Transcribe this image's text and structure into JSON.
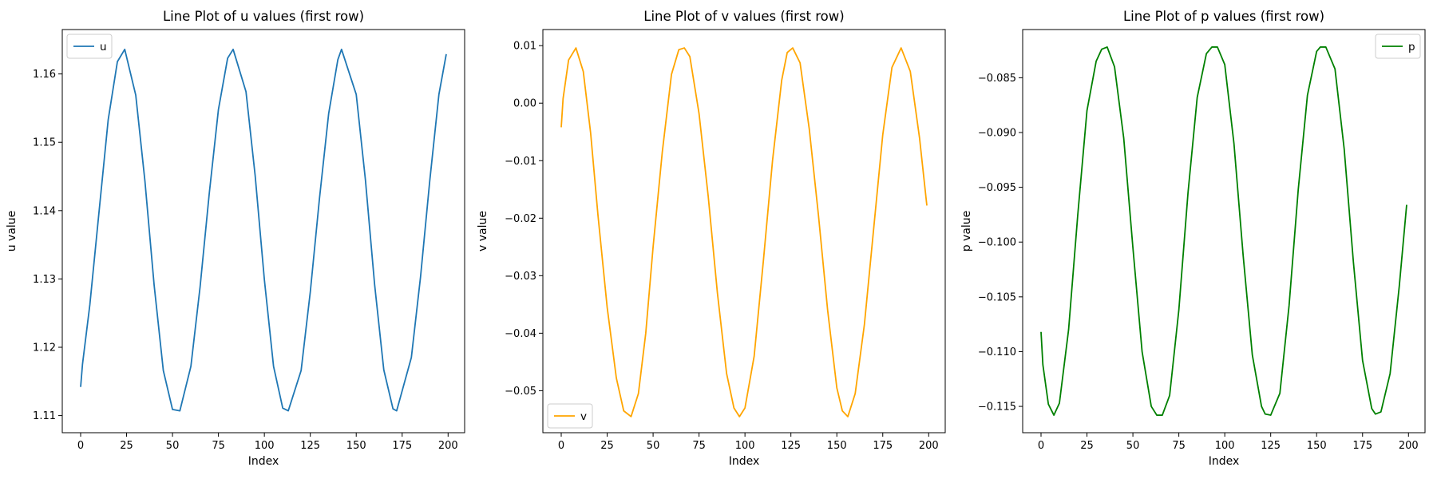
{
  "chart_data": [
    {
      "type": "line",
      "title": "Line Plot of u values (first row)",
      "xlabel": "Index",
      "ylabel": "u value",
      "xlim": [
        -10,
        209
      ],
      "ylim": [
        1.1075,
        1.1665
      ],
      "xticks": [
        0,
        25,
        50,
        75,
        100,
        125,
        150,
        175,
        200
      ],
      "xtick_labels": [
        "0",
        "25",
        "50",
        "75",
        "100",
        "125",
        "150",
        "175",
        "200"
      ],
      "yticks": [
        1.11,
        1.12,
        1.13,
        1.14,
        1.15,
        1.16
      ],
      "ytick_labels": [
        "1.11",
        "1.12",
        "1.13",
        "1.14",
        "1.15",
        "1.16"
      ],
      "legend_placement": "upper-left",
      "grid": false,
      "series": [
        {
          "name": "u",
          "color": "#1f77b4",
          "x": [
            0,
            1,
            5,
            10,
            15,
            20,
            24,
            30,
            35,
            40,
            45,
            50,
            54,
            60,
            65,
            70,
            75,
            80,
            83,
            90,
            95,
            100,
            105,
            110,
            113,
            120,
            125,
            130,
            135,
            140,
            142,
            150,
            155,
            160,
            165,
            170,
            172,
            180,
            185,
            190,
            195,
            199
          ],
          "values": [
            1.1142,
            1.1175,
            1.1262,
            1.1398,
            1.1533,
            1.1618,
            1.1636,
            1.1569,
            1.1443,
            1.1291,
            1.1166,
            1.1109,
            1.1107,
            1.1172,
            1.1288,
            1.1425,
            1.1548,
            1.1623,
            1.1636,
            1.1574,
            1.1451,
            1.1299,
            1.1172,
            1.1111,
            1.1107,
            1.1166,
            1.1281,
            1.1418,
            1.1542,
            1.1621,
            1.1636,
            1.157,
            1.1445,
            1.1292,
            1.1167,
            1.111,
            1.1107,
            1.1185,
            1.1303,
            1.1443,
            1.157,
            1.1629
          ]
        }
      ]
    },
    {
      "type": "line",
      "title": "Line Plot of v values (first row)",
      "xlabel": "Index",
      "ylabel": "v value",
      "xlim": [
        -10,
        209
      ],
      "ylim": [
        -0.0573,
        0.0128
      ],
      "xticks": [
        0,
        25,
        50,
        75,
        100,
        125,
        150,
        175,
        200
      ],
      "xtick_labels": [
        "0",
        "25",
        "50",
        "75",
        "100",
        "125",
        "150",
        "175",
        "200"
      ],
      "yticks": [
        -0.05,
        -0.04,
        -0.03,
        -0.02,
        -0.01,
        0.0,
        0.01
      ],
      "ytick_labels": [
        "−0.05",
        "−0.04",
        "−0.03",
        "−0.02",
        "−0.01",
        "0.00",
        "0.01"
      ],
      "legend_placement": "lower-left",
      "grid": false,
      "series": [
        {
          "name": "v",
          "color": "#ffa500",
          "x": [
            0,
            1,
            4,
            8,
            12,
            16,
            20,
            25,
            30,
            34,
            38,
            42,
            46,
            50,
            55,
            60,
            64,
            67,
            70,
            75,
            80,
            85,
            90,
            94,
            97,
            100,
            105,
            110,
            115,
            120,
            123,
            126,
            130,
            135,
            140,
            145,
            150,
            153,
            156,
            160,
            165,
            170,
            175,
            180,
            185,
            190,
            195,
            199
          ],
          "values": [
            -0.0042,
            0.0008,
            0.0075,
            0.0096,
            0.0055,
            -0.0052,
            -0.0195,
            -0.0355,
            -0.0478,
            -0.0535,
            -0.0545,
            -0.0505,
            -0.04,
            -0.025,
            -0.0085,
            0.005,
            0.0093,
            0.0096,
            0.0081,
            -0.0018,
            -0.0162,
            -0.033,
            -0.047,
            -0.053,
            -0.0545,
            -0.053,
            -0.044,
            -0.0275,
            -0.01,
            0.004,
            0.0088,
            0.0096,
            0.007,
            -0.0045,
            -0.0195,
            -0.036,
            -0.0495,
            -0.0535,
            -0.0545,
            -0.0505,
            -0.0385,
            -0.022,
            -0.0055,
            0.0062,
            0.0096,
            0.0055,
            -0.006,
            -0.0178
          ]
        }
      ]
    },
    {
      "type": "line",
      "title": "Line Plot of p values (first row)",
      "xlabel": "Index",
      "ylabel": "p value",
      "xlim": [
        -10,
        209
      ],
      "ylim": [
        -0.1174,
        -0.0806
      ],
      "xticks": [
        0,
        25,
        50,
        75,
        100,
        125,
        150,
        175,
        200
      ],
      "xtick_labels": [
        "0",
        "25",
        "50",
        "75",
        "100",
        "125",
        "150",
        "175",
        "200"
      ],
      "yticks": [
        -0.115,
        -0.11,
        -0.105,
        -0.1,
        -0.095,
        -0.09,
        -0.085
      ],
      "ytick_labels": [
        "−0.115",
        "−0.110",
        "−0.105",
        "−0.100",
        "−0.095",
        "−0.090",
        "−0.085"
      ],
      "legend_placement": "upper-right",
      "grid": false,
      "series": [
        {
          "name": "p",
          "color": "#008000",
          "x": [
            0,
            1,
            4,
            7,
            10,
            15,
            20,
            25,
            30,
            33,
            36,
            40,
            45,
            50,
            55,
            60,
            63,
            66,
            70,
            75,
            80,
            85,
            90,
            93,
            96,
            100,
            105,
            110,
            115,
            120,
            122,
            125,
            130,
            135,
            140,
            145,
            150,
            152,
            155,
            160,
            165,
            170,
            175,
            180,
            182,
            185,
            190,
            195,
            199
          ],
          "values": [
            -0.1082,
            -0.1112,
            -0.1148,
            -0.1158,
            -0.1147,
            -0.108,
            -0.0975,
            -0.088,
            -0.0835,
            -0.0824,
            -0.0822,
            -0.084,
            -0.0905,
            -0.1005,
            -0.11,
            -0.115,
            -0.1158,
            -0.1158,
            -0.114,
            -0.1062,
            -0.0955,
            -0.0868,
            -0.0828,
            -0.0822,
            -0.0822,
            -0.0838,
            -0.091,
            -0.1012,
            -0.1103,
            -0.115,
            -0.1157,
            -0.1158,
            -0.1138,
            -0.1058,
            -0.0952,
            -0.0866,
            -0.0826,
            -0.0822,
            -0.0822,
            -0.0842,
            -0.0915,
            -0.1018,
            -0.1108,
            -0.1152,
            -0.1157,
            -0.1155,
            -0.112,
            -0.104,
            -0.0966
          ]
        }
      ]
    }
  ]
}
